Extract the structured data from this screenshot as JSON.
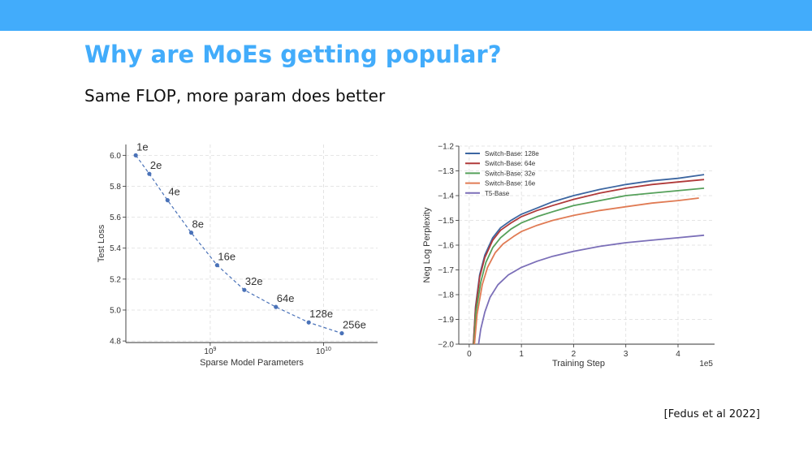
{
  "slide": {
    "title": "Why are MoEs getting popular?",
    "subtitle": "Same FLOP, more param does better",
    "citation": "[Fedus et al 2022]"
  },
  "colors": {
    "header_bar": "#42acfb",
    "title": "#42acfb"
  },
  "chart_data": [
    {
      "type": "line",
      "xlabel": "Sparse Model Parameters",
      "ylabel": "Test Loss",
      "x_scale": "log",
      "x_ticks": [
        {
          "value": 1000000000,
          "base": "10",
          "exp": "9"
        },
        {
          "value": 10000000000,
          "base": "10",
          "exp": "10"
        }
      ],
      "y_ticks": [
        4.8,
        5.0,
        5.2,
        5.4,
        5.6,
        5.8,
        6.0
      ],
      "xlim": [
        180000000,
        30000000000
      ],
      "ylim": [
        4.79,
        6.07
      ],
      "grid": true,
      "line_style": "dashed",
      "color": "#4a72b8",
      "points": [
        {
          "label": "1e",
          "x": 220000000,
          "y": 6.0
        },
        {
          "label": "2e",
          "x": 290000000,
          "y": 5.88
        },
        {
          "label": "4e",
          "x": 420000000,
          "y": 5.71
        },
        {
          "label": "8e",
          "x": 680000000,
          "y": 5.5
        },
        {
          "label": "16e",
          "x": 1150000000,
          "y": 5.29
        },
        {
          "label": "32e",
          "x": 2000000000,
          "y": 5.13
        },
        {
          "label": "64e",
          "x": 3800000000,
          "y": 5.02
        },
        {
          "label": "128e",
          "x": 7400000000,
          "y": 4.92
        },
        {
          "label": "256e",
          "x": 14500000000,
          "y": 4.85
        }
      ]
    },
    {
      "type": "line",
      "xlabel": "Training Step",
      "ylabel": "Neg Log Perplexity",
      "x_multiplier": "1e5",
      "x_ticks": [
        0,
        1,
        2,
        3,
        4
      ],
      "y_ticks": [
        -2.0,
        -1.9,
        -1.8,
        -1.7,
        -1.6,
        -1.5,
        -1.4,
        -1.3,
        -1.2
      ],
      "xlim": [
        -0.2,
        4.7
      ],
      "ylim": [
        -2.0,
        -1.2
      ],
      "grid": true,
      "legend": "top-left",
      "series": [
        {
          "name": "Switch-Base: 128e",
          "color": "#3c66a1",
          "x": [
            0.08,
            0.12,
            0.2,
            0.3,
            0.45,
            0.6,
            0.8,
            1.0,
            1.3,
            1.6,
            2.0,
            2.5,
            3.0,
            3.5,
            4.0,
            4.5
          ],
          "y": [
            -2.0,
            -1.85,
            -1.72,
            -1.64,
            -1.57,
            -1.53,
            -1.5,
            -1.475,
            -1.45,
            -1.425,
            -1.4,
            -1.375,
            -1.355,
            -1.34,
            -1.33,
            -1.315
          ]
        },
        {
          "name": "Switch-Base: 64e",
          "color": "#b03a3a",
          "x": [
            0.08,
            0.12,
            0.2,
            0.3,
            0.45,
            0.6,
            0.8,
            1.0,
            1.3,
            1.6,
            2.0,
            2.5,
            3.0,
            3.5,
            4.0,
            4.5
          ],
          "y": [
            -2.0,
            -1.86,
            -1.73,
            -1.65,
            -1.58,
            -1.54,
            -1.51,
            -1.485,
            -1.46,
            -1.44,
            -1.415,
            -1.39,
            -1.37,
            -1.355,
            -1.345,
            -1.335
          ]
        },
        {
          "name": "Switch-Base: 32e",
          "color": "#55a05a",
          "x": [
            0.09,
            0.13,
            0.22,
            0.32,
            0.45,
            0.6,
            0.8,
            1.0,
            1.3,
            1.6,
            2.0,
            2.5,
            3.0,
            3.5,
            4.0,
            4.5
          ],
          "y": [
            -2.0,
            -1.87,
            -1.75,
            -1.67,
            -1.61,
            -1.57,
            -1.535,
            -1.51,
            -1.485,
            -1.465,
            -1.44,
            -1.42,
            -1.4,
            -1.39,
            -1.38,
            -1.37
          ]
        },
        {
          "name": "Switch-Base: 16e",
          "color": "#e07b54",
          "x": [
            0.1,
            0.15,
            0.25,
            0.35,
            0.5,
            0.65,
            0.85,
            1.0,
            1.3,
            1.6,
            2.0,
            2.5,
            3.0,
            3.5,
            4.0,
            4.4
          ],
          "y": [
            -2.0,
            -1.88,
            -1.76,
            -1.69,
            -1.63,
            -1.595,
            -1.565,
            -1.545,
            -1.52,
            -1.5,
            -1.48,
            -1.46,
            -1.445,
            -1.43,
            -1.42,
            -1.41
          ]
        },
        {
          "name": "T5-Base",
          "color": "#7b6fb8",
          "x": [
            0.18,
            0.22,
            0.3,
            0.4,
            0.55,
            0.75,
            1.0,
            1.3,
            1.6,
            2.0,
            2.5,
            3.0,
            3.5,
            4.0,
            4.5
          ],
          "y": [
            -2.0,
            -1.94,
            -1.87,
            -1.81,
            -1.76,
            -1.72,
            -1.69,
            -1.665,
            -1.645,
            -1.625,
            -1.605,
            -1.59,
            -1.58,
            -1.57,
            -1.56
          ]
        }
      ]
    }
  ]
}
